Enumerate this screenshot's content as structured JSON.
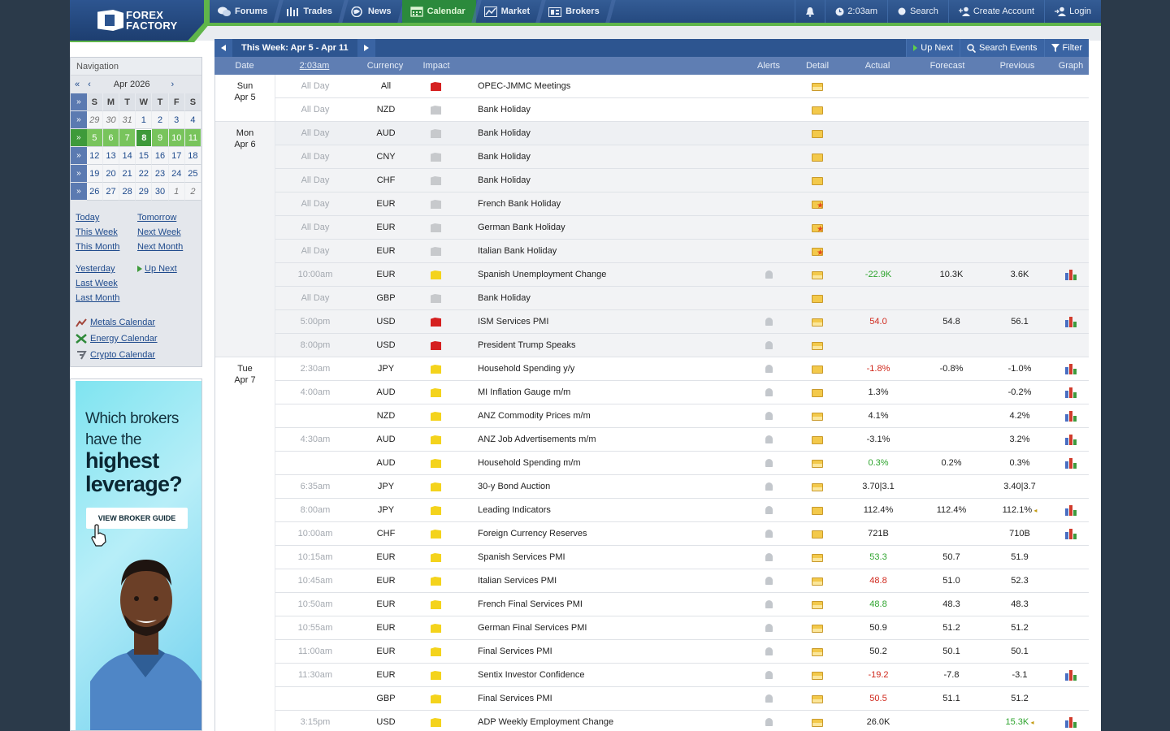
{
  "header": {
    "logo_line1": "FOREX",
    "logo_line2": "FACTORY",
    "tabs": [
      {
        "label": "Forums",
        "icon": "forums-icon"
      },
      {
        "label": "Trades",
        "icon": "trades-icon"
      },
      {
        "label": "News",
        "icon": "news-icon"
      },
      {
        "label": "Calendar",
        "icon": "calendar-icon",
        "active": true
      },
      {
        "label": "Market",
        "icon": "market-icon"
      },
      {
        "label": "Brokers",
        "icon": "brokers-icon"
      }
    ],
    "time": "2:03am",
    "search": "Search",
    "create_account": "Create Account",
    "login": "Login"
  },
  "navigation": {
    "title": "Navigation",
    "month_label": "Apr 2026",
    "prev_year": "«",
    "prev_month": "‹",
    "next_month": "›",
    "weekday_headers": [
      "S",
      "M",
      "T",
      "W",
      "T",
      "F",
      "S"
    ],
    "weeks": [
      {
        "days": [
          "29",
          "30",
          "31",
          "1",
          "2",
          "3",
          "4"
        ],
        "dim": [
          0,
          1,
          2
        ]
      },
      {
        "days": [
          "5",
          "6",
          "7",
          "8",
          "9",
          "10",
          "11"
        ],
        "dim": [],
        "current": true,
        "today_index": 3
      },
      {
        "days": [
          "12",
          "13",
          "14",
          "15",
          "16",
          "17",
          "18"
        ],
        "dim": []
      },
      {
        "days": [
          "19",
          "20",
          "21",
          "22",
          "23",
          "24",
          "25"
        ],
        "dim": []
      },
      {
        "days": [
          "26",
          "27",
          "28",
          "29",
          "30",
          "1",
          "2"
        ],
        "dim": [
          5,
          6
        ]
      }
    ],
    "week_marker": "»",
    "week_header_marker": "»",
    "links": {
      "today": "Today",
      "tomorrow": "Tomorrow",
      "this_week": "This Week",
      "next_week": "Next Week",
      "this_month": "This Month",
      "next_month": "Next Month",
      "yesterday": "Yesterday",
      "up_next": "Up Next",
      "last_week": "Last Week",
      "last_month": "Last Month",
      "metals": "Metals Calendar",
      "energy": "Energy Calendar",
      "crypto": "Crypto Calendar"
    }
  },
  "ad": {
    "line1": "Which brokers",
    "line2": "have the",
    "line3": "highest",
    "line4": "leverage?",
    "button": "VIEW BROKER GUIDE"
  },
  "calendar": {
    "week_title": "This Week: Apr 5 - Apr 11",
    "up_next": "Up Next",
    "search_events": "Search Events",
    "filter": "Filter",
    "columns": {
      "date": "Date",
      "time": "2:03am",
      "currency": "Currency",
      "impact": "Impact",
      "alerts": "Alerts",
      "detail": "Detail",
      "actual": "Actual",
      "forecast": "Forecast",
      "previous": "Previous",
      "graph": "Graph"
    },
    "colors": {
      "better": "#2ea42e",
      "worse": "#d0281c",
      "high_impact": "#d52020",
      "medium_impact": "#f4d31c",
      "holiday": "#c7c9cc"
    },
    "days": [
      {
        "day": "Sun",
        "date": "Apr 5",
        "rows": [
          {
            "time": "All Day",
            "currency": "All",
            "impact": "high",
            "event": "OPEC-JMMC Meetings",
            "detail": "open",
            "alert": false,
            "actual": "",
            "forecast": "",
            "previous": "",
            "graph": false
          },
          {
            "time": "All Day",
            "currency": "NZD",
            "impact": "holiday",
            "event": "Bank Holiday",
            "detail": "closed",
            "alert": false,
            "actual": "",
            "forecast": "",
            "previous": "",
            "graph": false
          }
        ]
      },
      {
        "day": "Mon",
        "date": "Apr 6",
        "rows": [
          {
            "time": "All Day",
            "currency": "AUD",
            "impact": "holiday",
            "event": "Bank Holiday",
            "detail": "closed",
            "alert": false,
            "actual": "",
            "forecast": "",
            "previous": "",
            "graph": false
          },
          {
            "time": "All Day",
            "currency": "CNY",
            "impact": "holiday",
            "event": "Bank Holiday",
            "detail": "closed",
            "alert": false,
            "actual": "",
            "forecast": "",
            "previous": "",
            "graph": false
          },
          {
            "time": "All Day",
            "currency": "CHF",
            "impact": "holiday",
            "event": "Bank Holiday",
            "detail": "closed",
            "alert": false,
            "actual": "",
            "forecast": "",
            "previous": "",
            "graph": false
          },
          {
            "time": "All Day",
            "currency": "EUR",
            "impact": "holiday",
            "event": "French Bank Holiday",
            "detail": "star",
            "alert": false,
            "actual": "",
            "forecast": "",
            "previous": "",
            "graph": false
          },
          {
            "time": "All Day",
            "currency": "EUR",
            "impact": "holiday",
            "event": "German Bank Holiday",
            "detail": "star",
            "alert": false,
            "actual": "",
            "forecast": "",
            "previous": "",
            "graph": false
          },
          {
            "time": "All Day",
            "currency": "EUR",
            "impact": "holiday",
            "event": "Italian Bank Holiday",
            "detail": "star",
            "alert": false,
            "actual": "",
            "forecast": "",
            "previous": "",
            "graph": false
          },
          {
            "time": "10:00am",
            "currency": "EUR",
            "impact": "medium",
            "event": "Spanish Unemployment Change",
            "detail": "open",
            "alert": true,
            "actual": "-22.9K",
            "actual_status": "better",
            "forecast": "10.3K",
            "previous": "3.6K",
            "graph": true
          },
          {
            "time": "All Day",
            "currency": "GBP",
            "impact": "holiday",
            "event": "Bank Holiday",
            "detail": "closed",
            "alert": false,
            "actual": "",
            "forecast": "",
            "previous": "",
            "graph": false
          },
          {
            "time": "5:00pm",
            "currency": "USD",
            "impact": "high",
            "event": "ISM Services PMI",
            "detail": "open",
            "alert": true,
            "actual": "54.0",
            "actual_status": "worse",
            "forecast": "54.8",
            "previous": "56.1",
            "graph": true
          },
          {
            "time": "8:00pm",
            "currency": "USD",
            "impact": "high",
            "event": "President Trump Speaks",
            "detail": "open",
            "alert": true,
            "actual": "",
            "forecast": "",
            "previous": "",
            "graph": false
          }
        ]
      },
      {
        "day": "Tue",
        "date": "Apr 7",
        "rows": [
          {
            "time": "2:30am",
            "currency": "JPY",
            "impact": "medium",
            "event": "Household Spending y/y",
            "detail": "closed",
            "alert": true,
            "actual": "-1.8%",
            "actual_status": "worse",
            "forecast": "-0.8%",
            "previous": "-1.0%",
            "graph": true
          },
          {
            "time": "4:00am",
            "currency": "AUD",
            "impact": "medium",
            "event": "MI Inflation Gauge m/m",
            "detail": "closed",
            "alert": true,
            "actual": "1.3%",
            "forecast": "",
            "previous": "-0.2%",
            "graph": true
          },
          {
            "time": "",
            "currency": "NZD",
            "impact": "medium",
            "event": "ANZ Commodity Prices m/m",
            "detail": "open",
            "alert": true,
            "actual": "4.1%",
            "forecast": "",
            "previous": "4.2%",
            "graph": true
          },
          {
            "time": "4:30am",
            "currency": "AUD",
            "impact": "medium",
            "event": "ANZ Job Advertisements m/m",
            "detail": "closed",
            "alert": true,
            "actual": "-3.1%",
            "forecast": "",
            "previous": "3.2%",
            "graph": true
          },
          {
            "time": "",
            "currency": "AUD",
            "impact": "medium",
            "event": "Household Spending m/m",
            "detail": "open",
            "alert": true,
            "actual": "0.3%",
            "actual_status": "better",
            "forecast": "0.2%",
            "previous": "0.3%",
            "graph": true
          },
          {
            "time": "6:35am",
            "currency": "JPY",
            "impact": "medium",
            "event": "30-y Bond Auction",
            "detail": "open",
            "alert": true,
            "actual": "3.70|3.1",
            "forecast": "",
            "previous": "3.40|3.7",
            "graph": false
          },
          {
            "time": "8:00am",
            "currency": "JPY",
            "impact": "medium",
            "event": "Leading Indicators",
            "detail": "closed",
            "alert": true,
            "actual": "112.4%",
            "forecast": "112.4%",
            "previous": "112.1%",
            "previous_revised": true,
            "graph": true
          },
          {
            "time": "10:00am",
            "currency": "CHF",
            "impact": "medium",
            "event": "Foreign Currency Reserves",
            "detail": "closed",
            "alert": true,
            "actual": "721B",
            "forecast": "",
            "previous": "710B",
            "graph": true
          },
          {
            "time": "10:15am",
            "currency": "EUR",
            "impact": "medium",
            "event": "Spanish Services PMI",
            "detail": "open",
            "alert": true,
            "actual": "53.3",
            "actual_status": "better",
            "forecast": "50.7",
            "previous": "51.9",
            "graph": false
          },
          {
            "time": "10:45am",
            "currency": "EUR",
            "impact": "medium",
            "event": "Italian Services PMI",
            "detail": "open",
            "alert": true,
            "actual": "48.8",
            "actual_status": "worse",
            "forecast": "51.0",
            "previous": "52.3",
            "graph": false
          },
          {
            "time": "10:50am",
            "currency": "EUR",
            "impact": "medium",
            "event": "French Final Services PMI",
            "detail": "open",
            "alert": true,
            "actual": "48.8",
            "actual_status": "better",
            "forecast": "48.3",
            "previous": "48.3",
            "graph": false
          },
          {
            "time": "10:55am",
            "currency": "EUR",
            "impact": "medium",
            "event": "German Final Services PMI",
            "detail": "open",
            "alert": true,
            "actual": "50.9",
            "forecast": "51.2",
            "previous": "51.2",
            "graph": false
          },
          {
            "time": "11:00am",
            "currency": "EUR",
            "impact": "medium",
            "event": "Final Services PMI",
            "detail": "open",
            "alert": true,
            "actual": "50.2",
            "forecast": "50.1",
            "previous": "50.1",
            "graph": false
          },
          {
            "time": "11:30am",
            "currency": "EUR",
            "impact": "medium",
            "event": "Sentix Investor Confidence",
            "detail": "open",
            "alert": true,
            "actual": "-19.2",
            "actual_status": "worse",
            "forecast": "-7.8",
            "previous": "-3.1",
            "graph": true
          },
          {
            "time": "",
            "currency": "GBP",
            "impact": "medium",
            "event": "Final Services PMI",
            "detail": "open",
            "alert": true,
            "actual": "50.5",
            "actual_status": "worse",
            "forecast": "51.1",
            "previous": "51.2",
            "graph": false
          },
          {
            "time": "3:15pm",
            "currency": "USD",
            "impact": "medium",
            "event": "ADP Weekly Employment Change",
            "detail": "open",
            "alert": true,
            "actual": "26.0K",
            "forecast": "",
            "previous": "15.3K",
            "previous_status": "better",
            "previous_revised": true,
            "graph": true
          }
        ]
      }
    ]
  }
}
